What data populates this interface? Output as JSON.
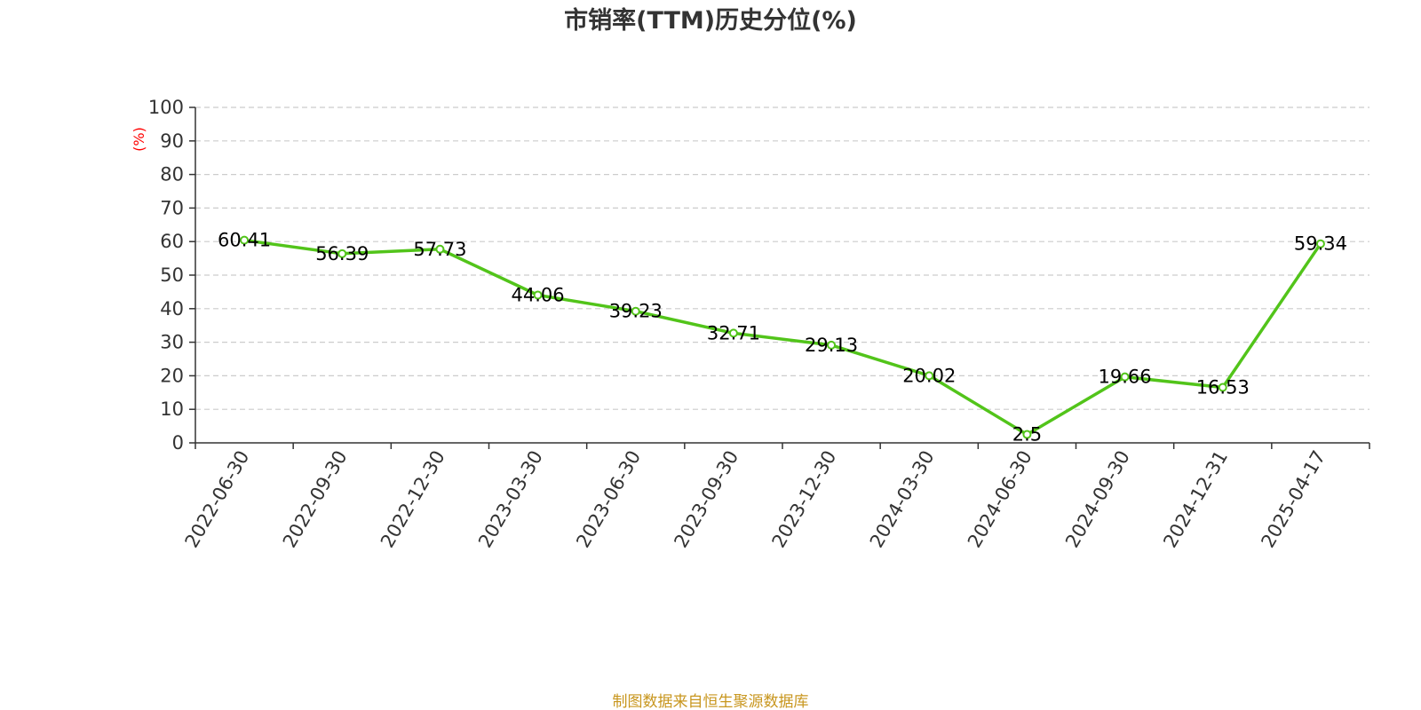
{
  "chart_data": {
    "type": "line",
    "title": "市销率(TTM)历史分位(%)",
    "ylabel": "(%)",
    "xlabel": "",
    "ylim": [
      0,
      100
    ],
    "yticks": [
      0,
      10,
      20,
      30,
      40,
      50,
      60,
      70,
      80,
      90,
      100
    ],
    "grid": true,
    "categories": [
      "2022-06-30",
      "2022-09-30",
      "2022-12-30",
      "2023-03-30",
      "2023-06-30",
      "2023-09-30",
      "2023-12-30",
      "2024-03-30",
      "2024-06-30",
      "2024-09-30",
      "2024-12-31",
      "2025-04-17"
    ],
    "series": [
      {
        "values": [
          60.41,
          56.39,
          57.73,
          44.06,
          39.23,
          32.71,
          29.13,
          20.02,
          2.5,
          19.66,
          16.53,
          59.34
        ],
        "labels": [
          "60.41",
          "56.39",
          "57.73",
          "44.06",
          "39.23",
          "32.71",
          "29.13",
          "20.02",
          "2.5",
          "19.66",
          "16.53",
          "59.34"
        ]
      }
    ],
    "source": "制图数据来自恒生聚源数据库",
    "colors": {
      "line": "#52c41a",
      "grid": "#cccccc",
      "axis": "#333333",
      "ylabel": "#ff0000",
      "source": "#c8961e"
    }
  }
}
